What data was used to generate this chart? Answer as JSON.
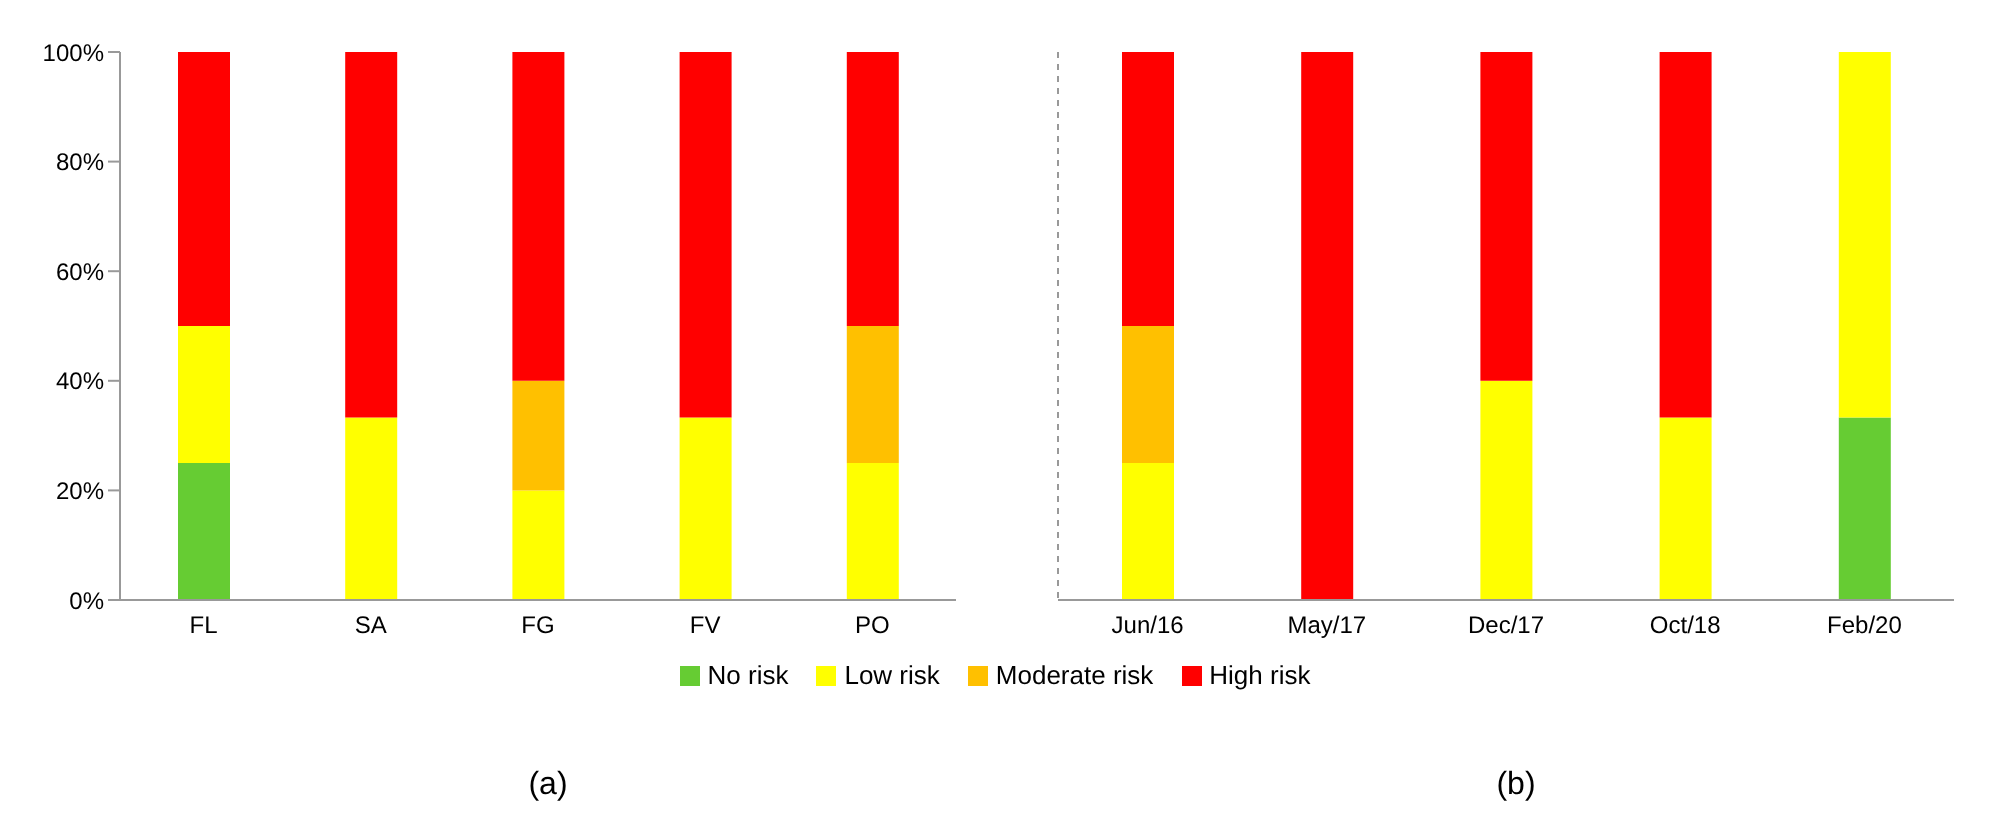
{
  "chart_data": [
    {
      "type": "bar",
      "stacked": true,
      "categories": [
        "FL",
        "SA",
        "FG",
        "FV",
        "PO"
      ],
      "ylim": [
        0,
        100
      ],
      "yticks": [
        {
          "value": 0,
          "label": "0%"
        },
        {
          "value": 20,
          "label": "20%"
        },
        {
          "value": 40,
          "label": "40%"
        },
        {
          "value": 60,
          "label": "60%"
        },
        {
          "value": 80,
          "label": "80%"
        },
        {
          "value": 100,
          "label": "100%"
        }
      ],
      "grid": false,
      "legend": "bottom",
      "annotations": [
        "(a)"
      ],
      "series": [
        {
          "name": "No risk",
          "color": "#66cc33",
          "values": [
            25,
            0,
            0,
            0,
            0
          ]
        },
        {
          "name": "Low risk",
          "color": "#ffff00",
          "values": [
            25,
            33.3,
            20,
            33.3,
            25
          ]
        },
        {
          "name": "Moderate risk",
          "color": "#ffc000",
          "values": [
            0,
            0,
            20,
            0,
            25
          ]
        },
        {
          "name": "High risk",
          "color": "#ff0000",
          "values": [
            50,
            66.7,
            60,
            66.7,
            50
          ]
        }
      ]
    },
    {
      "type": "bar",
      "stacked": true,
      "categories": [
        "Jun/16",
        "May/17",
        "Dec/17",
        "Oct/18",
        "Feb/20"
      ],
      "ylim": [
        0,
        100
      ],
      "tick_labels": "x",
      "grid": false,
      "annotations": [
        "(b)"
      ],
      "series": [
        {
          "color": "#66cc33",
          "values": [
            0,
            0,
            0,
            0,
            33.3
          ]
        },
        {
          "color": "#ffff00",
          "values": [
            25,
            0,
            40,
            33.3,
            66.7
          ]
        },
        {
          "color": "#ffc000",
          "values": [
            25,
            0,
            0,
            0,
            0
          ]
        },
        {
          "color": "#ff0000",
          "values": [
            50,
            100,
            60,
            66.7,
            0
          ]
        }
      ]
    }
  ]
}
